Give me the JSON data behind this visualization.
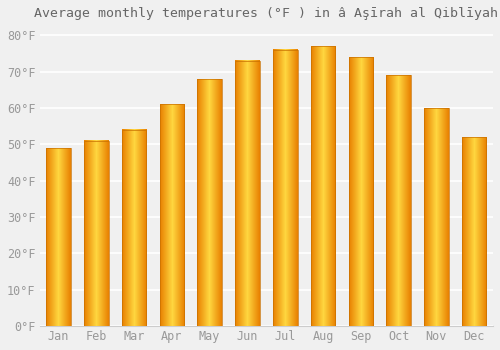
{
  "title": "Average monthly temperatures (°F ) in â Aşīrah al Qiblīyah",
  "months": [
    "Jan",
    "Feb",
    "Mar",
    "Apr",
    "May",
    "Jun",
    "Jul",
    "Aug",
    "Sep",
    "Oct",
    "Nov",
    "Dec"
  ],
  "values": [
    49,
    51,
    54,
    61,
    68,
    73,
    76,
    77,
    74,
    69,
    60,
    52
  ],
  "bar_color_center": "#FFD740",
  "bar_color_edge": "#E88000",
  "background_color": "#f0f0f0",
  "grid_color": "#ffffff",
  "ytick_labels": [
    "0°F",
    "10°F",
    "20°F",
    "30°F",
    "40°F",
    "50°F",
    "60°F",
    "70°F",
    "80°F"
  ],
  "ytick_values": [
    0,
    10,
    20,
    30,
    40,
    50,
    60,
    70,
    80
  ],
  "ylim": [
    0,
    82
  ],
  "title_fontsize": 9.5,
  "tick_fontsize": 8.5,
  "font_color": "#999999",
  "title_color": "#666666"
}
